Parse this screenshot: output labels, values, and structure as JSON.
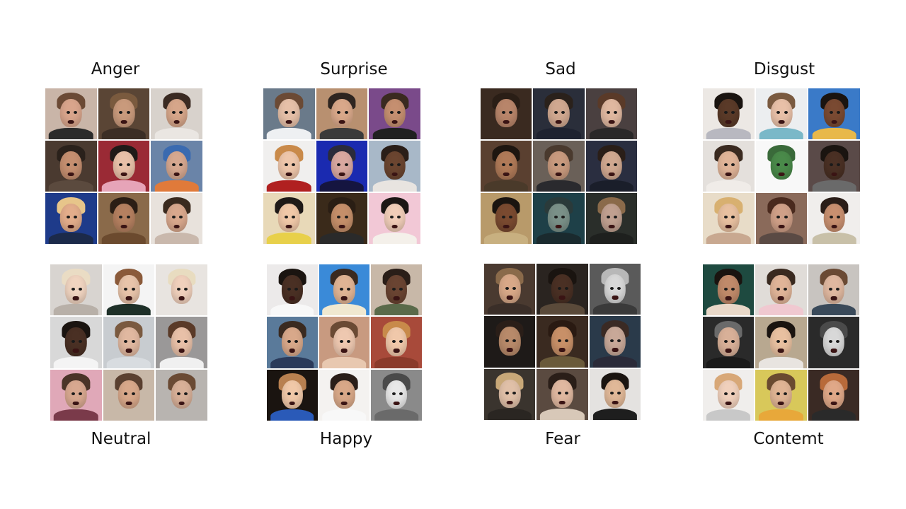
{
  "panels": [
    {
      "label": "Anger",
      "tiles": [
        {
          "bg": "#c9b5a8",
          "skin": "#d9a58c",
          "hair": "#6b4a35",
          "body": "#2b2b2b"
        },
        {
          "bg": "#5a4535",
          "skin": "#c99a7c",
          "hair": "#7a5a3e",
          "body": "#3b2e25"
        },
        {
          "bg": "#d8d2cc",
          "skin": "#d6a68a",
          "hair": "#3a2a22",
          "body": "#eae6e2"
        },
        {
          "bg": "#4a3a30",
          "skin": "#c58f70",
          "hair": "#2a211b",
          "body": "#5b4a3e"
        },
        {
          "bg": "#9a2a35",
          "skin": "#e8c0a8",
          "hair": "#1f1a18",
          "body": "#e6a4b8"
        },
        {
          "bg": "#6a84a8",
          "skin": "#d6a890",
          "hair": "#3a6ab0",
          "body": "#e07a3a"
        },
        {
          "bg": "#1e3b8a",
          "skin": "#e3ad8b",
          "hair": "#e7c58a",
          "body": "#1c2a4a"
        },
        {
          "bg": "#8a6a4a",
          "skin": "#b58060",
          "hair": "#2b1e15",
          "body": "#6b4a2e"
        },
        {
          "bg": "#e8e2dc",
          "skin": "#d9a88d",
          "hair": "#3a2a1e",
          "body": "#c9b8ac"
        }
      ]
    },
    {
      "label": "Surprise",
      "tiles": [
        {
          "bg": "#6a7a8a",
          "skin": "#e6c0a8",
          "hair": "#6b4a35",
          "body": "#eef0f2"
        },
        {
          "bg": "#b89070",
          "skin": "#d9a88a",
          "hair": "#2e2520",
          "body": "#3a3a3a"
        },
        {
          "bg": "#7a4a8a",
          "skin": "#c58f70",
          "hair": "#3a2a20",
          "body": "#202020"
        },
        {
          "bg": "#f0efee",
          "skin": "#eec6aa",
          "hair": "#c98a4a",
          "body": "#b02020"
        },
        {
          "bg": "#1a2ab0",
          "skin": "#d9a8a0",
          "hair": "#2b2b3a",
          "body": "#151540"
        },
        {
          "bg": "#a8b8c8",
          "skin": "#6b4530",
          "hair": "#2a1e18",
          "body": "#e8e4e0"
        },
        {
          "bg": "#e8d9b8",
          "skin": "#f0c8a8",
          "hair": "#1f1a18",
          "body": "#e8d04a"
        },
        {
          "bg": "#3a2a1a",
          "skin": "#c58f6a",
          "hair": "#2a1e14",
          "body": "#2a2a2a"
        },
        {
          "bg": "#f2c8d6",
          "skin": "#f0cdb8",
          "hair": "#1b1614",
          "body": "#f4f0ea"
        }
      ]
    },
    {
      "label": "Sad",
      "tiles": [
        {
          "bg": "#3a2a20",
          "skin": "#b8856a",
          "hair": "#2a1e16",
          "body": "#3a2a20"
        },
        {
          "bg": "#2a2e3a",
          "skin": "#d0a890",
          "hair": "#2a211b",
          "body": "#1e2230"
        },
        {
          "bg": "#4a4040",
          "skin": "#e0b8a0",
          "hair": "#5a3a28",
          "body": "#2a2828"
        },
        {
          "bg": "#5a4030",
          "skin": "#b07a58",
          "hair": "#1e1610",
          "body": "#4a3a2a"
        },
        {
          "bg": "#6a6058",
          "skin": "#c89a7e",
          "hair": "#4a3a2e",
          "body": "#2a2a2e"
        },
        {
          "bg": "#2a2e40",
          "skin": "#d0a890",
          "hair": "#2a1e18",
          "body": "#1a1e2a"
        },
        {
          "bg": "#b89a6a",
          "skin": "#7a4a30",
          "hair": "#1a1410",
          "body": "#c8b080"
        },
        {
          "bg": "#1e4048",
          "skin": "#7a9088",
          "hair": "#2a3a3a",
          "body": "#1a2a2e"
        },
        {
          "bg": "#2a2e2a",
          "skin": "#c0a090",
          "hair": "#8a6a4a",
          "body": "#1e201e"
        }
      ]
    },
    {
      "label": "Disgust",
      "tiles": [
        {
          "bg": "#ece8e4",
          "skin": "#5a3a28",
          "hair": "#1a1410",
          "body": "#b8b8c0"
        },
        {
          "bg": "#eceef0",
          "skin": "#e8c0a8",
          "hair": "#7a5a40",
          "body": "#7ab8c8"
        },
        {
          "bg": "#3a7ac8",
          "skin": "#7a4a32",
          "hair": "#1a1410",
          "body": "#e8b84a"
        },
        {
          "bg": "#e4e0dc",
          "skin": "#e0b498",
          "hair": "#3a2a20",
          "body": "#f0ece8"
        },
        {
          "bg": "#f8f8f8",
          "skin": "#4a8a4a",
          "hair": "#3a6a3a",
          "body": "#f8f8f8"
        },
        {
          "bg": "#5a4a48",
          "skin": "#4a3024",
          "hair": "#1a1410",
          "body": "#6a6a6a"
        },
        {
          "bg": "#e8dcc8",
          "skin": "#e8c0a0",
          "hair": "#d8b070",
          "body": "#c8a890"
        },
        {
          "bg": "#8a6a5a",
          "skin": "#d0a088",
          "hair": "#4a2a1e",
          "body": "#5a4a44"
        },
        {
          "bg": "#f0eeec",
          "skin": "#c89070",
          "hair": "#2a1e18",
          "body": "#c8c0a8"
        }
      ]
    },
    {
      "label": "Neutral",
      "tiles": [
        {
          "bg": "#d8d4d0",
          "skin": "#f0d4c0",
          "hair": "#eadcc4",
          "body": "#b8b0a8"
        },
        {
          "bg": "#f4f4f4",
          "skin": "#e8c4aa",
          "hair": "#8a5a3a",
          "body": "#1e3028"
        },
        {
          "bg": "#e8e4e0",
          "skin": "#f0d0bc",
          "hair": "#e8dcc0",
          "body": "#e8e4e0"
        },
        {
          "bg": "#d8d8d8",
          "skin": "#4a3024",
          "hair": "#1a1410",
          "body": "#f4f4f4"
        },
        {
          "bg": "#c8ccd0",
          "skin": "#e0b8a0",
          "hair": "#7a5a40",
          "body": "#d8dce0"
        },
        {
          "bg": "#9a9898",
          "skin": "#e8c0a8",
          "hair": "#5a3a28",
          "body": "#f0f0f0"
        },
        {
          "bg": "#e0a8b8",
          "skin": "#d8a890",
          "hair": "#4a3428",
          "body": "#7a3a4a"
        },
        {
          "bg": "#c8b8a8",
          "skin": "#d8a88a",
          "hair": "#5a4030",
          "body": "#c8b8a8"
        },
        {
          "bg": "#b8b4b0",
          "skin": "#d8b098",
          "hair": "#6a4a34",
          "body": "#b8b4b0"
        }
      ]
    },
    {
      "label": "Happy",
      "tiles": [
        {
          "bg": "#eceaea",
          "skin": "#4a3024",
          "hair": "#1a1410",
          "body": "#f8f8f8"
        },
        {
          "bg": "#3a8ad8",
          "skin": "#e0b494",
          "hair": "#3a2a20",
          "body": "#f0e8d0"
        },
        {
          "bg": "#c8b8a8",
          "skin": "#6a4432",
          "hair": "#2a1e18",
          "body": "#5a6a4a"
        },
        {
          "bg": "#5a7a9a",
          "skin": "#d8a88a",
          "hair": "#3a2a20",
          "body": "#2a3a5a"
        },
        {
          "bg": "#c89a80",
          "skin": "#eec8b0",
          "hair": "#6a4a34",
          "body": "#e8c8b0"
        },
        {
          "bg": "#a84a3a",
          "skin": "#f0c8aa",
          "hair": "#c88a4a",
          "body": "#8a3a2a"
        },
        {
          "bg": "#1a1410",
          "skin": "#f0c8a8",
          "hair": "#b88050",
          "body": "#2a5ab8"
        },
        {
          "bg": "#f4f2f0",
          "skin": "#d8a888",
          "hair": "#2a1e18",
          "body": "#f8f8f8"
        },
        {
          "bg": "#8a8a8a",
          "skin": "#e8e8e8",
          "hair": "#4a4a4a",
          "body": "#6a6a6a"
        }
      ]
    },
    {
      "label": "Fear",
      "tiles": [
        {
          "bg": "#4a3a30",
          "skin": "#d8a888",
          "hair": "#8a6a4a",
          "body": "#3a2e28"
        },
        {
          "bg": "#2a2420",
          "skin": "#4a3024",
          "hair": "#1a1410",
          "body": "#5a4a3a"
        },
        {
          "bg": "#5a5a5a",
          "skin": "#d8d8d8",
          "hair": "#b8b8b8",
          "body": "#3a3a3a"
        },
        {
          "bg": "#1e1a18",
          "skin": "#b88a6a",
          "hair": "#2a1e18",
          "body": "#1e1a18"
        },
        {
          "bg": "#3a2a20",
          "skin": "#c89068",
          "hair": "#2a1a12",
          "body": "#6a5a3a"
        },
        {
          "bg": "#2a3a4a",
          "skin": "#c8a898",
          "hair": "#3a2a24",
          "body": "#2a2a38"
        },
        {
          "bg": "#3a342e",
          "skin": "#e0c0a8",
          "hair": "#c8a878",
          "body": "#2a2622"
        },
        {
          "bg": "#5a4a40",
          "skin": "#e0b8a0",
          "hair": "#2a1e18",
          "body": "#d8c8b8"
        },
        {
          "bg": "#e4e2e0",
          "skin": "#e0b898",
          "hair": "#1a1410",
          "body": "#1e1e1e"
        }
      ]
    },
    {
      "label": "Contemt",
      "tiles": [
        {
          "bg": "#1e4a40",
          "skin": "#c08a6a",
          "hair": "#1a1410",
          "body": "#e8d8c8"
        },
        {
          "bg": "#e0dcd8",
          "skin": "#e0b498",
          "hair": "#3a2a20",
          "body": "#f0c8d0"
        },
        {
          "bg": "#c8c4c0",
          "skin": "#e0b8a0",
          "hair": "#6a4a34",
          "body": "#3a4a5a"
        },
        {
          "bg": "#2a2a2a",
          "skin": "#d8b098",
          "hair": "#6a6a6a",
          "body": "#1a1a1a"
        },
        {
          "bg": "#b8a890",
          "skin": "#e8c0a0",
          "hair": "#1a1410",
          "body": "#e8e4e0"
        },
        {
          "bg": "#2a2a2a",
          "skin": "#d8d8d8",
          "hair": "#4a4a4a",
          "body": "#2a2a2a"
        },
        {
          "bg": "#f0eeec",
          "skin": "#f0d0bc",
          "hair": "#d8a878",
          "body": "#c8c8c8"
        },
        {
          "bg": "#d8c85a",
          "skin": "#e0b494",
          "hair": "#6a4a30",
          "body": "#e8a83a"
        },
        {
          "bg": "#3a2a24",
          "skin": "#e0a888",
          "hair": "#b86a3a",
          "body": "#2a2a2a"
        }
      ]
    }
  ]
}
